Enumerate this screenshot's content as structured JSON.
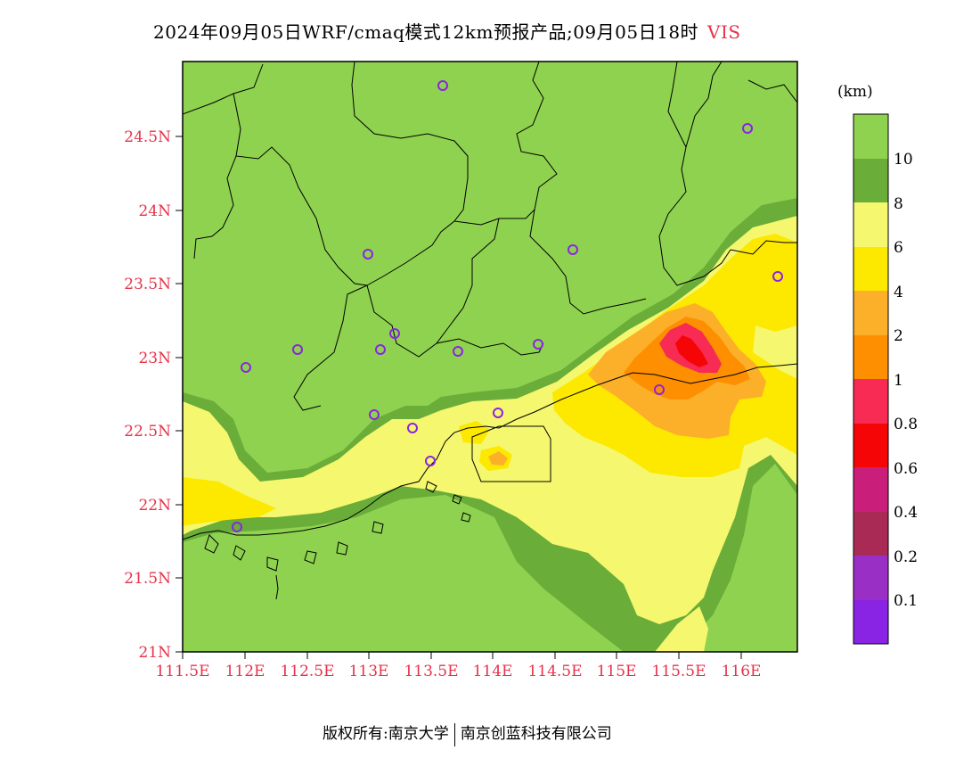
{
  "title": {
    "text": "2024年09月05日WRF/cmaq模式12km预报产品;09月05日18时",
    "variable": "VIS"
  },
  "axes": {
    "lat_labels": [
      "24.5N",
      "24N",
      "23.5N",
      "23N",
      "22.5N",
      "22N",
      "21.5N",
      "21N"
    ],
    "lon_labels": [
      "111.5E",
      "112E",
      "112.5E",
      "113E",
      "113.5E",
      "114E",
      "114.5E",
      "115E",
      "115.5E",
      "116E"
    ],
    "label_color": "#e8324a"
  },
  "legend": {
    "unit": "(km)",
    "labels": [
      "10",
      "8",
      "6",
      "4",
      "2",
      "1",
      "0.8",
      "0.6",
      "0.4",
      "0.2",
      "0.1"
    ],
    "colors": [
      "#8fd250",
      "#6aad39",
      "#f5f76e",
      "#fde800",
      "#fcb02a",
      "#fd8f00",
      "#f72b53",
      "#f50505",
      "#c91e7a",
      "#a92b55",
      "#9a2fc6",
      "#8a24e4"
    ]
  },
  "map": {
    "background_color": "#8fd250"
  },
  "footer": {
    "left": "版权所有:南京大学",
    "right": "南京创蓝科技有限公司"
  }
}
